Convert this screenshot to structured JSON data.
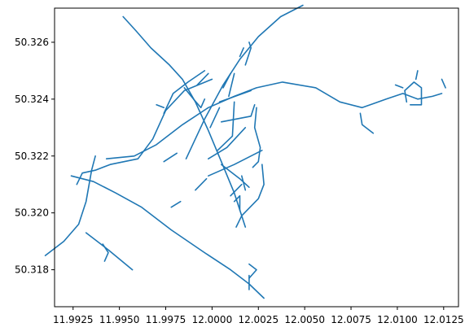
{
  "chart_data": {
    "type": "line",
    "title": "",
    "xlabel": "",
    "ylabel": "",
    "xlim": [
      11.9915,
      12.0133
    ],
    "ylim": [
      50.3167,
      50.3272
    ],
    "grid": false,
    "line_color": "#1f77b4",
    "x_ticks": [
      11.9925,
      11.995,
      11.9975,
      12.0,
      12.0025,
      12.005,
      12.0075,
      12.01,
      12.0125
    ],
    "x_tick_labels": [
      "11.9925",
      "11.9950",
      "11.9975",
      "12.0000",
      "12.0025",
      "12.0050",
      "12.0075",
      "12.0100",
      "12.0125"
    ],
    "y_ticks": [
      50.318,
      50.32,
      50.322,
      50.324,
      50.326
    ],
    "y_tick_labels": [
      "50.318",
      "50.320",
      "50.322",
      "50.324",
      "50.326"
    ],
    "series": [
      {
        "points": [
          [
            11.9952,
            50.3269
          ],
          [
            11.9959,
            50.3264
          ],
          [
            11.9967,
            50.3258
          ],
          [
            11.9977,
            50.3252
          ],
          [
            11.9984,
            50.3247
          ],
          [
            11.9991,
            50.3239
          ],
          [
            11.9998,
            50.3229
          ],
          [
            12.0005,
            50.3218
          ],
          [
            12.0012,
            50.3207
          ],
          [
            12.0018,
            50.3195
          ]
        ]
      },
      {
        "points": [
          [
            11.9974,
            50.3235
          ],
          [
            11.9979,
            50.3242
          ],
          [
            11.9987,
            50.3246
          ],
          [
            11.9996,
            50.325
          ]
        ]
      },
      {
        "points": [
          [
            11.9992,
            50.3245
          ],
          [
            11.9998,
            50.3249
          ]
        ]
      },
      {
        "points": [
          [
            11.997,
            50.3238
          ],
          [
            11.9974,
            50.3237
          ]
        ]
      },
      {
        "points": [
          [
            11.9986,
            50.3219
          ],
          [
            11.9996,
            50.3233
          ],
          [
            12.0006,
            50.3245
          ],
          [
            12.0015,
            50.3254
          ],
          [
            12.0025,
            50.3262
          ],
          [
            12.0037,
            50.3269
          ],
          [
            12.0049,
            50.3273
          ]
        ]
      },
      {
        "points": [
          [
            11.9927,
            50.321
          ],
          [
            11.993,
            50.3214
          ],
          [
            11.9937,
            50.3215
          ],
          [
            11.9945,
            50.3217
          ],
          [
            11.996,
            50.3219
          ],
          [
            11.9968,
            50.3226
          ],
          [
            11.9975,
            50.3236
          ],
          [
            11.9985,
            50.3243
          ],
          [
            12.0,
            50.3247
          ]
        ]
      },
      {
        "points": [
          [
            11.9943,
            50.3219
          ],
          [
            11.9958,
            50.322
          ],
          [
            11.997,
            50.3224
          ],
          [
            11.9984,
            50.3231
          ],
          [
            11.9998,
            50.3237
          ],
          [
            12.0012,
            50.3241
          ],
          [
            12.0024,
            50.3244
          ],
          [
            12.0038,
            50.3246
          ],
          [
            12.0056,
            50.3244
          ],
          [
            12.0069,
            50.3239
          ],
          [
            12.0081,
            50.3237
          ],
          [
            12.0094,
            50.324
          ],
          [
            12.0103,
            50.3242
          ],
          [
            12.0111,
            50.324
          ],
          [
            12.0119,
            50.3241
          ],
          [
            12.0124,
            50.3242
          ]
        ]
      },
      {
        "points": [
          [
            11.9924,
            50.3213
          ],
          [
            11.9936,
            50.3211
          ],
          [
            11.9948,
            50.3207
          ],
          [
            11.9962,
            50.3202
          ],
          [
            11.9978,
            50.3194
          ],
          [
            11.9996,
            50.3186
          ],
          [
            12.001,
            50.318
          ],
          [
            12.002,
            50.3175
          ],
          [
            12.0028,
            50.317
          ]
        ]
      },
      {
        "points": [
          [
            11.991,
            50.3185
          ],
          [
            11.992,
            50.319
          ],
          [
            11.9928,
            50.3196
          ],
          [
            11.9932,
            50.3204
          ],
          [
            11.9935,
            50.3215
          ],
          [
            11.9937,
            50.322
          ]
        ]
      },
      {
        "points": [
          [
            11.9932,
            50.3193
          ],
          [
            11.9944,
            50.3187
          ],
          [
            11.9957,
            50.318
          ]
        ]
      },
      {
        "points": [
          [
            11.9941,
            50.3189
          ],
          [
            11.9944,
            50.3186
          ],
          [
            11.9942,
            50.3183
          ]
        ]
      },
      {
        "points": [
          [
            11.9991,
            50.3208
          ],
          [
            11.9997,
            50.3212
          ]
        ]
      },
      {
        "points": [
          [
            11.9974,
            50.3218
          ],
          [
            11.9981,
            50.3221
          ]
        ]
      },
      {
        "points": [
          [
            11.9978,
            50.3202
          ],
          [
            11.9983,
            50.3204
          ]
        ]
      },
      {
        "points": [
          [
            11.9998,
            50.3213
          ],
          [
            12.0012,
            50.3217
          ],
          [
            12.0027,
            50.3222
          ]
        ]
      },
      {
        "points": [
          [
            11.9998,
            50.3219
          ],
          [
            12.0008,
            50.3223
          ],
          [
            12.0018,
            50.323
          ]
        ]
      },
      {
        "points": [
          [
            11.9999,
            50.323
          ],
          [
            12.0004,
            50.3237
          ]
        ]
      },
      {
        "points": [
          [
            11.9985,
            50.3244
          ],
          [
            11.999,
            50.324
          ],
          [
            11.9994,
            50.3237
          ],
          [
            11.9996,
            50.324
          ]
        ]
      },
      {
        "points": [
          [
            12.0003,
            50.3222
          ],
          [
            12.0011,
            50.3227
          ],
          [
            12.0012,
            50.3239
          ]
        ]
      },
      {
        "points": [
          [
            12.0005,
            50.3232
          ],
          [
            12.0021,
            50.3234
          ],
          [
            12.0023,
            50.3238
          ]
        ]
      },
      {
        "points": [
          [
            12.0004,
            50.3239
          ],
          [
            12.0021,
            50.3243
          ]
        ]
      },
      {
        "points": [
          [
            12.002,
            50.3209
          ],
          [
            12.0015,
            50.3212
          ],
          [
            12.0005,
            50.3217
          ]
        ]
      },
      {
        "points": [
          [
            12.0022,
            50.3216
          ],
          [
            12.0025,
            50.3218
          ],
          [
            12.0026,
            50.3223
          ],
          [
            12.0023,
            50.323
          ],
          [
            12.0024,
            50.3237
          ]
        ]
      },
      {
        "points": [
          [
            12.0016,
            50.3213
          ],
          [
            12.0018,
            50.3208
          ]
        ]
      },
      {
        "points": [
          [
            12.0013,
            50.3195
          ],
          [
            12.0016,
            50.3199
          ],
          [
            12.0025,
            50.3205
          ],
          [
            12.0028,
            50.321
          ],
          [
            12.0027,
            50.3217
          ]
        ]
      },
      {
        "points": [
          [
            12.001,
            50.3206
          ],
          [
            12.0016,
            50.321
          ]
        ]
      },
      {
        "points": [
          [
            12.0012,
            50.3204
          ],
          [
            12.0015,
            50.3206
          ],
          [
            12.0015,
            50.3201
          ]
        ]
      },
      {
        "points": [
          [
            12.0015,
            50.3255
          ],
          [
            12.0017,
            50.3258
          ]
        ]
      },
      {
        "points": [
          [
            12.002,
            50.326
          ],
          [
            12.0021,
            50.3258
          ],
          [
            12.0018,
            50.3252
          ]
        ]
      },
      {
        "points": [
          [
            12.001,
            50.3249
          ],
          [
            12.0006,
            50.3244
          ]
        ]
      },
      {
        "points": [
          [
            12.0009,
            50.3241
          ],
          [
            12.0012,
            50.3249
          ]
        ]
      },
      {
        "points": [
          [
            12.002,
            50.3182
          ],
          [
            12.0024,
            50.318
          ],
          [
            12.002,
            50.3177
          ]
        ]
      },
      {
        "points": [
          [
            12.002,
            50.3178
          ],
          [
            12.002,
            50.3173
          ]
        ]
      },
      {
        "points": [
          [
            12.008,
            50.3235
          ],
          [
            12.0081,
            50.3231
          ],
          [
            12.0087,
            50.3228
          ]
        ]
      },
      {
        "points": [
          [
            12.0105,
            50.3239
          ],
          [
            12.0104,
            50.3243
          ],
          [
            12.0109,
            50.3246
          ],
          [
            12.0113,
            50.3244
          ],
          [
            12.0113,
            50.3238
          ],
          [
            12.0107,
            50.3238
          ]
        ]
      },
      {
        "points": [
          [
            12.0099,
            50.3245
          ],
          [
            12.0103,
            50.3244
          ]
        ]
      },
      {
        "points": [
          [
            12.011,
            50.3247
          ],
          [
            12.0111,
            50.325
          ]
        ]
      },
      {
        "points": [
          [
            12.0124,
            50.3247
          ],
          [
            12.0126,
            50.3244
          ]
        ]
      }
    ]
  }
}
